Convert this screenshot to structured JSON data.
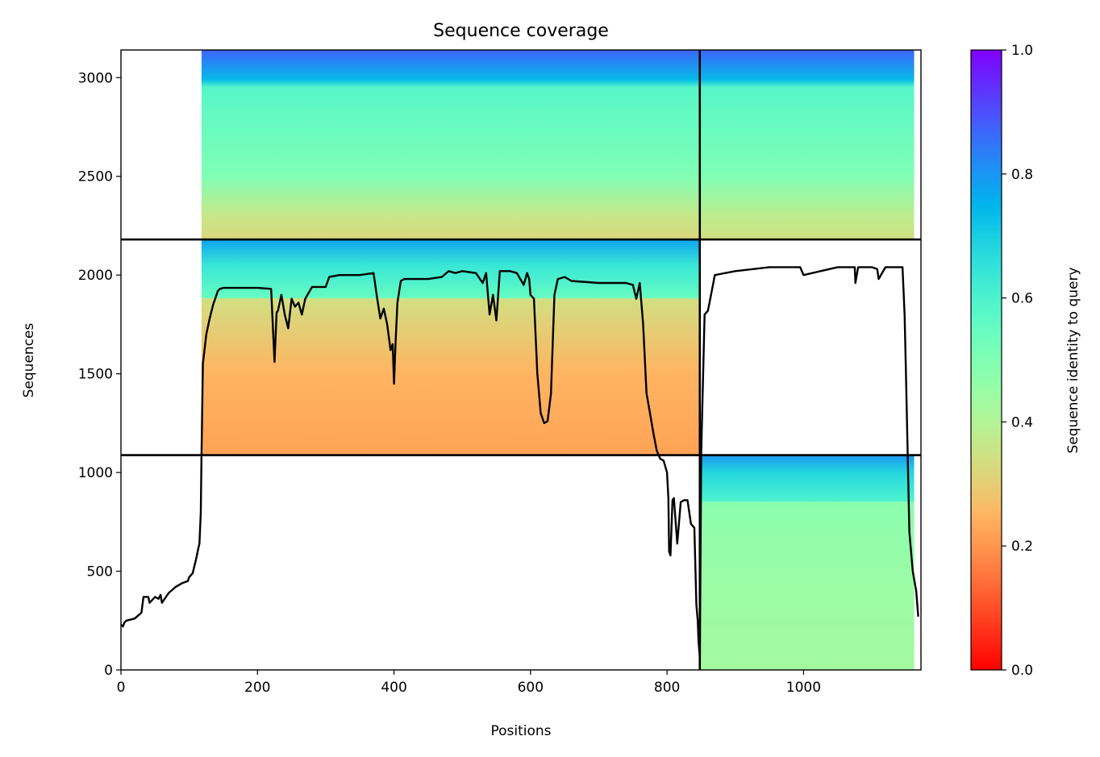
{
  "chart_data": {
    "type": "heatmap",
    "title": "Sequence coverage",
    "xlabel": "Positions",
    "ylabel": "Sequences",
    "xlim": [
      0,
      1172
    ],
    "ylim": [
      0,
      3140
    ],
    "xticks": [
      0,
      200,
      400,
      600,
      800,
      1000
    ],
    "yticks": [
      0,
      500,
      1000,
      1500,
      2000,
      2500,
      3000
    ],
    "colorbar": {
      "label": "Sequence identity to query",
      "range": [
        0,
        1
      ],
      "ticks": [
        "0.0",
        "0.2",
        "0.4",
        "0.6",
        "0.8",
        "1.0"
      ],
      "colormap": "rainbow_r"
    },
    "chain_boundaries": {
      "x": [
        848
      ],
      "y": [
        1088,
        2180
      ]
    },
    "blocks": [
      {
        "name": "block-chain1-pair",
        "x0": 0,
        "x1": 848,
        "y0": 2180,
        "y1": 3140,
        "start_x": 118,
        "stops": [
          {
            "y": 2180,
            "id": 0.32
          },
          {
            "y": 2300,
            "id": 0.36
          },
          {
            "y": 2500,
            "id": 0.5
          },
          {
            "y": 2950,
            "id": 0.58
          },
          {
            "y": 2990,
            "id": 0.74
          },
          {
            "y": 3140,
            "id": 0.87
          }
        ]
      },
      {
        "name": "block-chain2-pair",
        "x0": 848,
        "x1": 1162,
        "y0": 2180,
        "y1": 3140,
        "start_x": 848,
        "stops": [
          {
            "y": 2180,
            "id": 0.34
          },
          {
            "y": 2300,
            "id": 0.38
          },
          {
            "y": 2500,
            "id": 0.5
          },
          {
            "y": 2950,
            "id": 0.58
          },
          {
            "y": 2990,
            "id": 0.74
          },
          {
            "y": 3140,
            "id": 0.87
          }
        ]
      },
      {
        "name": "block-chain1-unpaired",
        "x0": 0,
        "x1": 848,
        "y0": 1088,
        "y1": 2180,
        "start_x": 118,
        "stops": [
          {
            "y": 1088,
            "id": 0.22
          },
          {
            "y": 1500,
            "id": 0.25
          },
          {
            "y": 1880,
            "id": 0.34
          },
          {
            "y": 1885,
            "id": 0.55
          },
          {
            "y": 2050,
            "id": 0.64
          },
          {
            "y": 2180,
            "id": 0.78
          }
        ]
      },
      {
        "name": "block-chain2-unpaired",
        "x0": 848,
        "x1": 1162,
        "y0": 0,
        "y1": 1088,
        "start_x": 848,
        "stops": [
          {
            "y": 0,
            "id": 0.43
          },
          {
            "y": 500,
            "id": 0.45
          },
          {
            "y": 850,
            "id": 0.48
          },
          {
            "y": 855,
            "id": 0.6
          },
          {
            "y": 1000,
            "id": 0.68
          },
          {
            "y": 1088,
            "id": 0.8
          }
        ]
      }
    ],
    "coverage_line": {
      "name": "Coverage",
      "x": [
        0,
        3,
        5,
        8,
        20,
        30,
        33,
        40,
        42,
        50,
        55,
        58,
        60,
        70,
        80,
        90,
        98,
        100,
        105,
        110,
        113,
        115,
        117,
        118,
        120,
        125,
        130,
        135,
        140,
        142,
        145,
        150,
        200,
        220,
        225,
        228,
        230,
        235,
        240,
        245,
        250,
        255,
        260,
        265,
        270,
        280,
        300,
        305,
        320,
        350,
        370,
        375,
        380,
        385,
        390,
        395,
        398,
        400,
        402,
        405,
        410,
        415,
        420,
        430,
        450,
        470,
        480,
        490,
        500,
        520,
        530,
        535,
        540,
        545,
        550,
        555,
        560,
        570,
        580,
        590,
        595,
        598,
        600,
        605,
        610,
        615,
        620,
        625,
        630,
        635,
        640,
        650,
        660,
        700,
        740,
        750,
        755,
        760,
        765,
        770,
        775,
        780,
        785,
        790,
        795,
        800,
        802,
        803,
        805,
        808,
        810,
        815,
        820,
        825,
        830,
        835,
        840,
        843,
        845,
        846,
        848,
        850,
        855,
        860,
        870,
        900,
        950,
        990,
        995,
        1000,
        1050,
        1075,
        1076,
        1080,
        1100,
        1108,
        1110,
        1120,
        1130,
        1145,
        1148,
        1150,
        1155,
        1160,
        1165,
        1168
      ],
      "y": [
        230,
        220,
        240,
        250,
        260,
        290,
        370,
        370,
        340,
        370,
        360,
        380,
        340,
        390,
        420,
        440,
        450,
        470,
        490,
        560,
        610,
        640,
        800,
        1100,
        1550,
        1700,
        1780,
        1850,
        1900,
        1920,
        1930,
        1935,
        1935,
        1930,
        1560,
        1810,
        1820,
        1900,
        1800,
        1730,
        1880,
        1840,
        1860,
        1800,
        1880,
        1940,
        1940,
        1990,
        2000,
        2000,
        2010,
        1890,
        1780,
        1830,
        1750,
        1620,
        1650,
        1450,
        1640,
        1860,
        1970,
        1980,
        1980,
        1980,
        1980,
        1990,
        2020,
        2010,
        2020,
        2010,
        1960,
        2010,
        1800,
        1900,
        1770,
        2020,
        2020,
        2020,
        2010,
        1950,
        2010,
        1980,
        1900,
        1880,
        1500,
        1300,
        1250,
        1260,
        1400,
        1900,
        1980,
        1990,
        1970,
        1960,
        1960,
        1950,
        1880,
        1960,
        1750,
        1400,
        1300,
        1200,
        1110,
        1070,
        1060,
        1000,
        870,
        600,
        580,
        860,
        870,
        640,
        850,
        860,
        860,
        740,
        720,
        330,
        250,
        150,
        60,
        1100,
        1800,
        1820,
        2000,
        2020,
        2040,
        2040,
        2040,
        2000,
        2040,
        2040,
        1960,
        2040,
        2040,
        2030,
        1980,
        2040,
        2040,
        2040,
        1800,
        1500,
        700,
        500,
        400,
        270,
        110
      ]
    }
  }
}
